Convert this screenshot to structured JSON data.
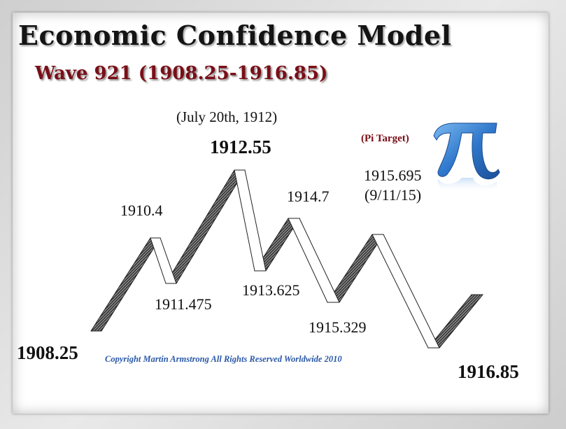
{
  "title": "Economic Confidence Model",
  "subtitle": "Wave 921 (1908.25-1916.85)",
  "labels": {
    "start": "1908.25",
    "p1910": "1910.4",
    "t1911": "1911.475",
    "peak_date": "(July 20th, 1912)",
    "peak": "1912.55",
    "t1913": "1913.625",
    "p1914": "1914.7",
    "t1915": "1915.329",
    "pi_target": "(Pi Target)",
    "pi_value": "1915.695",
    "pi_date": "(9/11/15)",
    "end": "1916.85"
  },
  "copyright": "Copyright Martin Armstrong All Rights Reserved Worldwide 2010",
  "icon": "pi-symbol-icon",
  "colors": {
    "subtitle": "#7a0e17",
    "copyright": "#2a58a8",
    "pi": "#3a7fd0",
    "ribbon_dark": "#5a5a5a"
  }
}
